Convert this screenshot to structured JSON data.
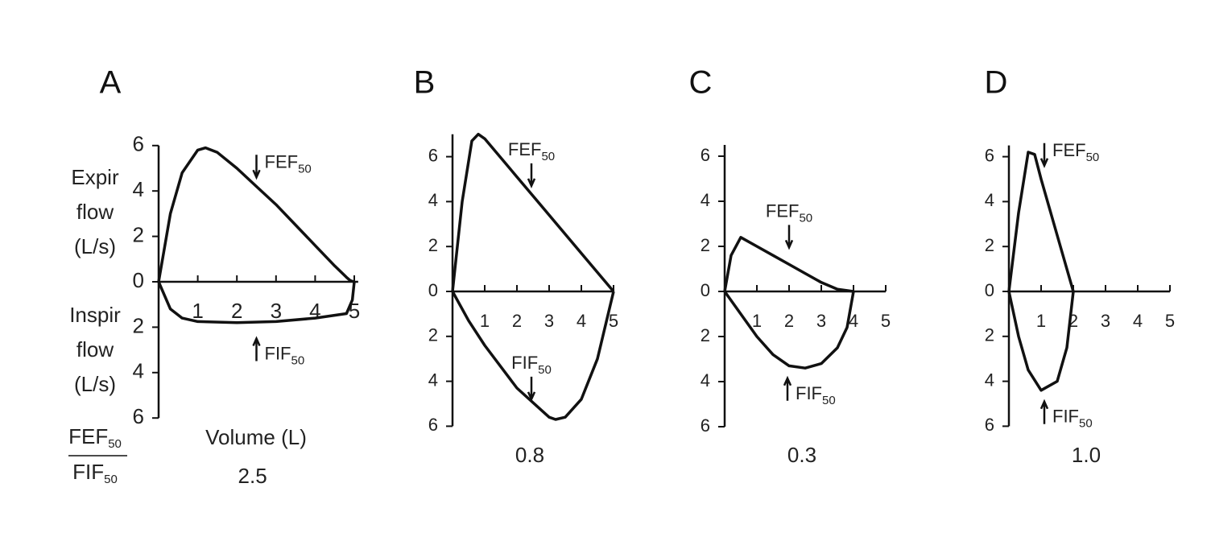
{
  "chart_data": [
    {
      "type": "line",
      "panel": "A",
      "y_label_expir": [
        "Expir",
        "flow",
        "(L/s)"
      ],
      "y_label_inspir": [
        "Inspir",
        "flow",
        "(L/s)"
      ],
      "x_label": "Volume (L)",
      "ratio_label": {
        "numerator": {
          "text": "FEF",
          "sub": "50"
        },
        "denominator": {
          "text": "FIF",
          "sub": "50"
        }
      },
      "ratio": "2.5",
      "xlim": [
        0,
        5.1
      ],
      "ylim": [
        -6,
        6
      ],
      "xticks": [
        1,
        2,
        3,
        4,
        5
      ],
      "yticks": [
        6,
        4,
        2,
        0,
        {
          "value": -2,
          "label": "2"
        },
        {
          "value": -4,
          "label": "4"
        },
        {
          "value": -6,
          "label": "6"
        }
      ],
      "color": "#111111",
      "series": [
        {
          "x": [
            0,
            0.3,
            0.6,
            1.0,
            1.2,
            1.5,
            2,
            2.5,
            3,
            3.5,
            4,
            4.5,
            4.8,
            4.9,
            5
          ],
          "values": [
            0,
            3,
            4.8,
            5.8,
            5.9,
            5.7,
            5.0,
            4.2,
            3.4,
            2.5,
            1.6,
            0.7,
            0.2,
            0.05,
            0
          ]
        },
        {
          "x": [
            0,
            0.3,
            0.6,
            1,
            2,
            3,
            4,
            4.8,
            4.95,
            5
          ],
          "values": [
            0,
            -1.2,
            -1.6,
            -1.75,
            -1.8,
            -1.75,
            -1.6,
            -1.4,
            -0.8,
            0
          ]
        }
      ],
      "annotations": [
        {
          "text": "FEF",
          "sub": "50",
          "x": 2.5,
          "y": 4.6,
          "dir": "down"
        },
        {
          "text": "FIF",
          "sub": "50",
          "x": 2.5,
          "y": -2.5,
          "dir": "up"
        }
      ]
    },
    {
      "type": "line",
      "panel": "B",
      "ratio": "0.8",
      "xlim": [
        0,
        5
      ],
      "ylim": [
        -6,
        7
      ],
      "xticks": [
        1,
        2,
        3,
        4,
        5
      ],
      "yticks": [
        6,
        4,
        2,
        0,
        {
          "value": -2,
          "label": "2"
        },
        {
          "value": -4,
          "label": "4"
        },
        {
          "value": -6,
          "label": "6"
        }
      ],
      "color": "#111111",
      "series": [
        {
          "x": [
            0,
            0.3,
            0.6,
            0.8,
            1,
            2,
            3,
            4,
            5
          ],
          "values": [
            0,
            4,
            6.7,
            7,
            6.8,
            5.1,
            3.4,
            1.7,
            0
          ]
        },
        {
          "x": [
            0,
            0.5,
            1,
            2,
            3,
            3.2,
            3.5,
            4,
            4.5,
            5
          ],
          "values": [
            0,
            -1.3,
            -2.4,
            -4.3,
            -5.6,
            -5.7,
            -5.6,
            -4.8,
            -3,
            0
          ]
        }
      ],
      "annotations": [
        {
          "text": "FEF",
          "sub": "50",
          "x": 2.45,
          "y": 4.7,
          "dir": "down"
        },
        {
          "text": "FIF",
          "sub": "50",
          "x": 2.45,
          "y": -4.8,
          "dir": "down"
        }
      ]
    },
    {
      "type": "line",
      "panel": "C",
      "ratio": "0.3",
      "xlim": [
        0,
        5
      ],
      "ylim": [
        -6,
        6.5
      ],
      "xticks": [
        1,
        2,
        3,
        4,
        5
      ],
      "yticks": [
        6,
        4,
        2,
        0,
        {
          "value": -2,
          "label": "2"
        },
        {
          "value": -4,
          "label": "4"
        },
        {
          "value": -6,
          "label": "6"
        }
      ],
      "color": "#111111",
      "series": [
        {
          "x": [
            0,
            0.2,
            0.5,
            1,
            1.5,
            2,
            2.5,
            3,
            3.5,
            4
          ],
          "values": [
            0,
            1.6,
            2.4,
            2,
            1.6,
            1.2,
            0.8,
            0.4,
            0.1,
            0
          ]
        },
        {
          "x": [
            0,
            0.5,
            1,
            1.5,
            2,
            2.5,
            3,
            3.5,
            3.8,
            4
          ],
          "values": [
            0,
            -1,
            -2,
            -2.8,
            -3.3,
            -3.4,
            -3.2,
            -2.5,
            -1.6,
            0
          ]
        }
      ],
      "annotations": [
        {
          "text": "FEF",
          "sub": "50",
          "x": 2.0,
          "y": 1.95,
          "dir": "down"
        },
        {
          "text": "FIF",
          "sub": "50",
          "x": 1.95,
          "y": -3.85,
          "dir": "up"
        }
      ]
    },
    {
      "type": "line",
      "panel": "D",
      "ratio": "1.0",
      "xlim": [
        0,
        5
      ],
      "ylim": [
        -6,
        6.5
      ],
      "xticks": [
        1,
        2,
        3,
        4,
        5
      ],
      "yticks": [
        6,
        4,
        2,
        0,
        {
          "value": -2,
          "label": "2"
        },
        {
          "value": -4,
          "label": "4"
        },
        {
          "value": -6,
          "label": "6"
        }
      ],
      "color": "#111111",
      "series": [
        {
          "x": [
            0,
            0.3,
            0.6,
            0.8,
            1,
            1.5,
            2
          ],
          "values": [
            0,
            3.5,
            6.2,
            6.1,
            5,
            2.5,
            0
          ]
        },
        {
          "x": [
            0,
            0.3,
            0.6,
            1,
            1.5,
            1.8,
            2
          ],
          "values": [
            0,
            -2,
            -3.5,
            -4.4,
            -4,
            -2.5,
            0
          ]
        }
      ],
      "annotations": [
        {
          "text": "FEF",
          "sub": "50",
          "x": 1.1,
          "y": 5.6,
          "dir": "down"
        },
        {
          "text": "FIF",
          "sub": "50",
          "x": 1.1,
          "y": -4.9,
          "dir": "up"
        }
      ]
    }
  ]
}
